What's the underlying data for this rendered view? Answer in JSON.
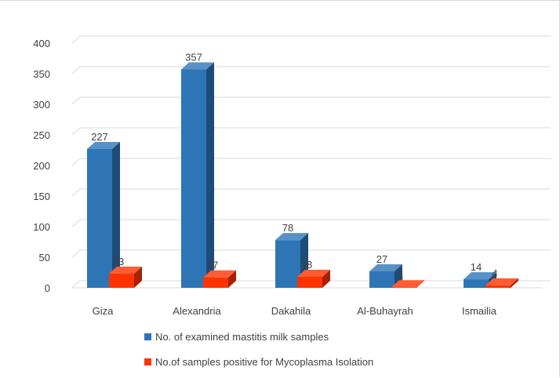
{
  "chart_data": {
    "type": "bar",
    "categories": [
      "Giza",
      "Alexandria",
      "Dakahila",
      "Al-Buhayrah",
      "Ismailia"
    ],
    "series": [
      {
        "name": "No. of examined mastitis milk samples",
        "values": [
          227,
          357,
          78,
          27,
          14
        ],
        "color": "#2e75b6"
      },
      {
        "name": "No.of samples positive for Mycoplasma Isolation",
        "values": [
          23,
          17,
          18,
          1,
          4
        ],
        "color": "#ff3300"
      }
    ],
    "ylim": [
      0,
      400
    ],
    "yticks": [
      0,
      50,
      100,
      150,
      200,
      250,
      300,
      350,
      400
    ],
    "grid": true,
    "legend_position": "bottom",
    "style": "3d-clustered-column"
  }
}
